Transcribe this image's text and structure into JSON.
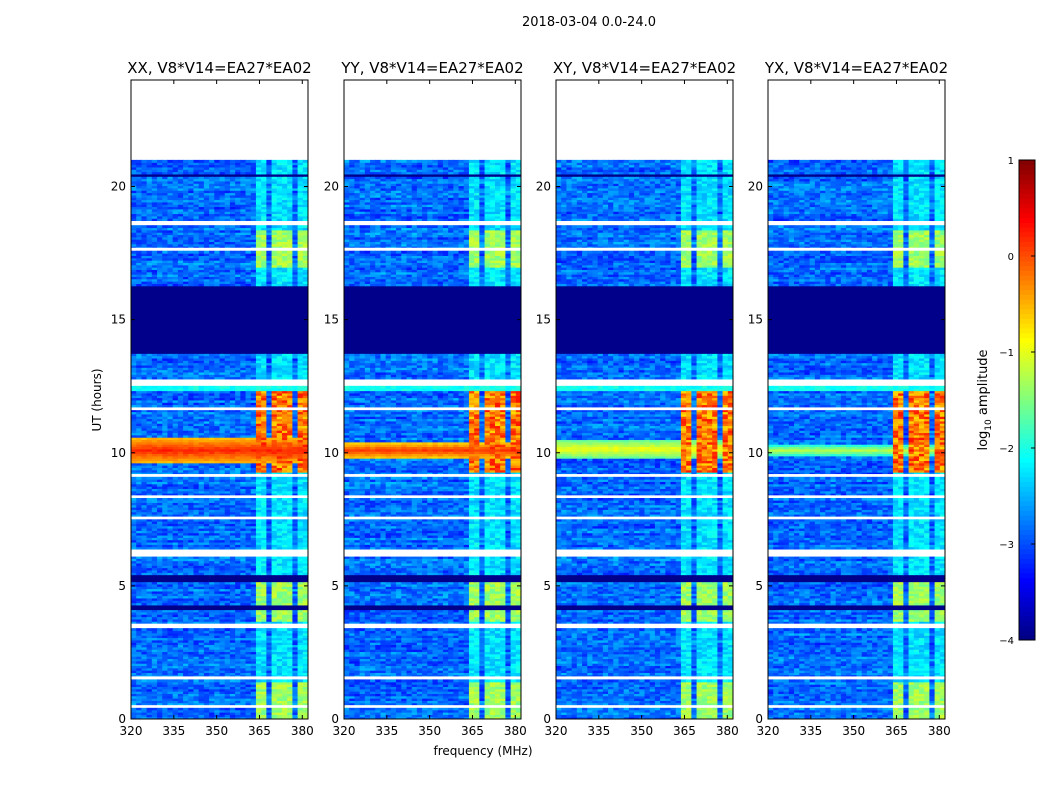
{
  "figure": {
    "suptitle": "2018-03-04 0.0-24.0",
    "colorbar_label_prefix": "log",
    "colorbar_label_sub": "10",
    "colorbar_label_suffix": " amplitude"
  },
  "chart_data": {
    "type": "heatmap",
    "title": "2018-03-04 0.0-24.0",
    "xlabel": "frequency (MHz)",
    "ylabel": "UT (hours)",
    "xlim": [
      320,
      382
    ],
    "ylim": [
      0,
      24
    ],
    "xticks": [
      320,
      335,
      350,
      365,
      380
    ],
    "yticks": [
      0,
      5,
      10,
      15,
      20
    ],
    "colorbar": {
      "label": "log10 amplitude",
      "range": [
        -4,
        1
      ],
      "ticks": [
        -4,
        -3,
        -2,
        -1,
        0,
        1
      ],
      "tick_labels": [
        "−4",
        "−3",
        "−2",
        "−1",
        "0",
        "1"
      ]
    },
    "data_end_hour": 21.0,
    "blank_time_bands": [
      [
        0.42,
        0.52
      ],
      [
        1.5,
        1.6
      ],
      [
        3.45,
        3.58
      ],
      [
        6.1,
        6.35
      ],
      [
        7.5,
        7.6
      ],
      [
        8.3,
        8.4
      ],
      [
        9.1,
        9.2
      ],
      [
        11.6,
        11.7
      ],
      [
        12.55,
        12.75
      ],
      [
        17.6,
        17.7
      ],
      [
        18.55,
        18.7
      ]
    ],
    "dark_time_bands": [
      [
        5.15,
        5.45
      ],
      [
        4.15,
        4.25
      ],
      [
        13.7,
        16.25
      ],
      [
        20.35,
        20.5
      ]
    ],
    "rfi_channels_mhz": [
      [
        364,
        368
      ],
      [
        368.8,
        372.6
      ],
      [
        373.6,
        377.2
      ],
      [
        378,
        381.6
      ]
    ],
    "panels": [
      {
        "id": "XX",
        "title": "XX, V8*V14=EA27*EA02",
        "rfi_start_mhz": 363.5,
        "broadband_event": {
          "t_start": 9.6,
          "t_end": 10.6,
          "log10_level": 0.1
        }
      },
      {
        "id": "YY",
        "title": "YY, V8*V14=EA27*EA02",
        "rfi_start_mhz": 362.5,
        "broadband_event": {
          "t_start": 9.8,
          "t_end": 10.4,
          "log10_level": 0.0
        }
      },
      {
        "id": "XY",
        "title": "XY, V8*V14=EA27*EA02",
        "rfi_start_mhz": 363.5,
        "broadband_event": {
          "t_start": 9.8,
          "t_end": 10.5,
          "log10_level": -1.0
        }
      },
      {
        "id": "YX",
        "title": "YX, V8*V14=EA27*EA02",
        "rfi_start_mhz": 363.5,
        "broadband_event": {
          "t_start": 9.9,
          "t_end": 10.3,
          "log10_level": -1.3
        }
      }
    ]
  }
}
